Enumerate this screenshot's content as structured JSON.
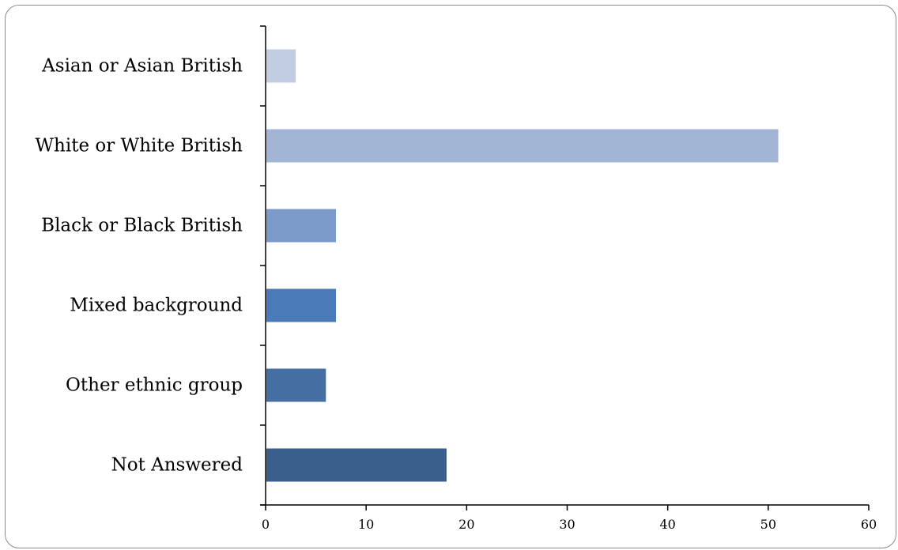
{
  "chart_data": {
    "type": "bar",
    "orientation": "horizontal",
    "title": "",
    "xlabel": "",
    "ylabel": "",
    "categories": [
      "Asian or Asian British",
      "White or White British",
      "Black or Black British",
      "Mixed background",
      "Other ethnic group",
      "Not Answered"
    ],
    "values": [
      3,
      51,
      7,
      7,
      6,
      18
    ],
    "bar_colors": [
      "#c3cde2",
      "#a3b5d5",
      "#7b9aca",
      "#4a7ab8",
      "#456fa3",
      "#3a5f8c"
    ],
    "xlim": [
      0,
      60
    ],
    "xticks": [
      "0",
      "10",
      "20",
      "30",
      "40",
      "50",
      "60"
    ],
    "grid": false,
    "legend": "none"
  }
}
